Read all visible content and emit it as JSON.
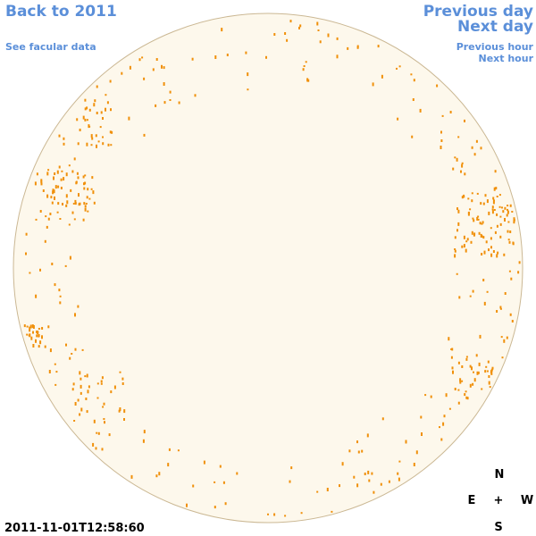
{
  "links": {
    "back": "Back to 2011",
    "facular_data": "See facular data",
    "previous_day": "Previous day",
    "next_day": "Next day",
    "previous_hour": "Previous hour",
    "next_hour": "Next hour"
  },
  "compass": {
    "north": "N",
    "east": "E",
    "center": "+",
    "west": "W",
    "south": "S"
  },
  "timestamp": "2011-11-01T12:58:60"
}
